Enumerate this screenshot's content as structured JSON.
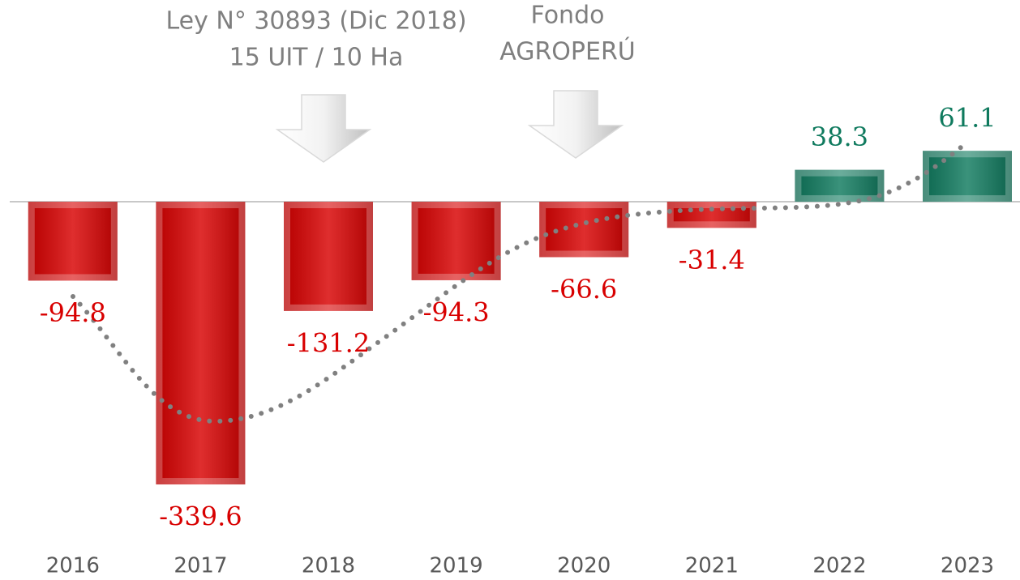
{
  "chart_data": {
    "type": "bar",
    "annotations": [
      [
        "Ley N° 30893 (Dic 2018)",
        "15 UIT /  10 Ha"
      ],
      [
        "Fondo",
        "AGROPERÚ"
      ]
    ],
    "categories": [
      "2016",
      "2017",
      "2018",
      "2019",
      "2020",
      "2021",
      "2022",
      "2023"
    ],
    "values": [
      -94.8,
      -339.6,
      -131.2,
      -94.3,
      -66.6,
      -31.4,
      38.3,
      61.1
    ],
    "colors": [
      "#d80000",
      "#d80000",
      "#d80000",
      "#d80000",
      "#d80000",
      "#d80000",
      "#0f7a5e",
      "#0f7a5e"
    ],
    "ylim": [
      -400,
      100
    ]
  }
}
